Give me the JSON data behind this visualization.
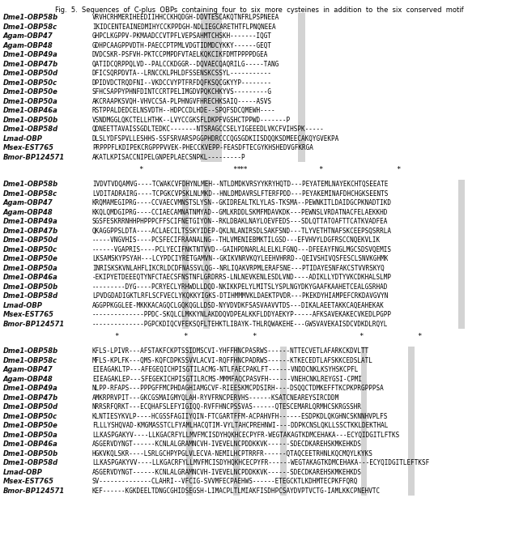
{
  "title": "Fig.  5.  Sequences  of  C-plus  OBPs  containing  four  to  six  more  cysteines  in  addition  to  the  six  conserved  motif",
  "background_color": "#ffffff",
  "text_color": "#000000",
  "label_color": "#111111",
  "shading_color": "#b0b0b0",
  "figsize": [
    6.41,
    6.78
  ],
  "dpi": 100,
  "label_fontsize": 6.0,
  "seq_fontsize": 5.5,
  "blocks": [
    {
      "labels": [
        "Dme1-OBP58b",
        "Dme1-OBP58c",
        "Agam-OBP47",
        "Agam-OBP48",
        "Dme1-OBP49a",
        "Dme1-OBP47b",
        "Dme1-OBP50d",
        "Dme1-OBP50c",
        "Dme1-OBP50e",
        "Dme1-OBP50a",
        "Dme1-OBP46a",
        "Dme1-OBP50b",
        "Dme1-OBP58d",
        "Lmad-OBP",
        "Msex-EST765",
        "Bmor-BP124571"
      ],
      "sequences": [
        "VRVHCRHMERIHEEDIIHHCCKHQDGH-DDVTESCAKQTNFRLPSPNEEA",
        "IKIDCENTEAINEDMIHYCCKPPDGH-NDLIEGCARETHTFLPNQNEEA",
        "GHPCLKGPPV-PKMAADCCVTPFLVEPSAHMTCHSKH-------IQGT",
        "GDHPCAAGPPVDTH-PAECCPTPMLVDGTIDMDCYKKY------GEQT",
        "DVDCSKR-PSFVH-PKTCCPMPDFVTAELKQKCIKFDMTPPPPDGEA",
        "QATIDCQRPPQLVD--PALCCKDGGR--DQVAECQAQRILG-----TANG",
        "DFICSQRPDVTA--LRNCCKLPHLDFSSENSKCSSYL-----------",
        "DPIDVDCTRQDFNI--VKDCCVYPTFRFDQFKSQCGKYYP--------",
        "SFHCSAPPYPHNFDINTCCRTPELIMGDVPQKCHKYVS---------G",
        "AKCRAAPKSVQH-VHVCCSA-PLPHNGVFHRECHKSAIQ-----ASVS",
        "RSTPPALDEDCELNSVDTH--HDPCCDLHDE--SPQFSDCQMEWH----",
        "VSNDMGGLQKCTELLHTHK--LVYCCGKSFLDKPFVGSHCTPPWD-------P",
        "QDNEETTAVAISSGDLTEDKC-------NTSRAGCCSELYIGEEEDLVKCFVIHSPK-----",
        "DLSLYDFSPVLLESHHS-SSFSRVARSPGGPHDRCCCQGSGDKIISDQQKSDMEECAKQYGVEKPA",
        "PRPPPFLKDIPEKCRGPPPVVEK-PHECCKVEPP-FEASDFTECGYKHSHEDVGFKRGA",
        "AKATLKPISACCNIPELGNPEPLAECSNPKL---------P"
      ],
      "star_cols": [
        7,
        22,
        23,
        35,
        47
      ],
      "double_star_cols": [
        22,
        23
      ]
    },
    {
      "labels": [
        "Dme1-OBP58b",
        "Dme1-OBP58c",
        "Agam-OBP47",
        "Agam-OBP48",
        "Dme1-OBP49a",
        "Dme1-OBP47b",
        "Dme1-OBP50d",
        "Dme1-OBP50c",
        "Dme1-OBP50e",
        "Dme1-OBP50a",
        "Dme1-OBP46a",
        "Dme1-OBP50b",
        "Dme1-OBP58d",
        "Lmad-OBP",
        "Msex-EST765",
        "Bmor-BP124571"
      ],
      "sequences": [
        "IVDVTVDQAMVG----TCWAKCVFDHYNLMEH--NTLDMDKVRSYYKRYHQTD---PEYATEMLNAYEKCHTQSEEATE",
        "LVDITADRAIRG----TCPGKCVPSKLNLMKD--HNLDMDAVRSLFTERFPDD---PEYAKEMINAFDHCHGKSEENTS",
        "KRQMAMEGIPRG----CCVAECVMNSTSLYSN--GKIDREALTKLYLAS-TKSMA--PEWNKITLDAIDGCPKNADTIKD",
        "KKQLQMDGIPRG----CCIAECAMNATNMYAD--GMLKRDDLSKMFMDAVKDK---PEWNSLVRDATNACFELAEKKHD",
        "SGSFESKRRNHHPHPPPCFFSCIFNETGIYON--RKLDBAKLNAYLOEVFEDS---SDLQTTATOAFTTCATKVADFEA",
        "QKAGGPPSLDTA----ACLAECILTSSKYIDEP-QKLNLANIRSDLSAKFSND---TLYVETHTNAFSKCEEPSQSRRLA",
        "-----VNGVHIS----PCSFECIFRAANALNG--THLVMENIEBMKTILGSD---EFVHVYLDGFRSCCNQEKVLIK",
        "------VGAPRIS----PCLYECIFNKTNTVVD--GAIHPDNARLALELKLFGNQ---DFEEAYFNGLMGCSDSVQEMIS",
        "LKSAMSKYPSYAH---LCYPDCIYRETGAMVN--GKIKVNRVKQYLEEHVHRRD--QEIVSHIVQSFESCLSNVKGHMK",
        "INRISKSKVNLAHFLIKCRLDCDFNASSVLQG--NRLIQAKVRPMLERAFSNE---PTIDAYESNFAKCSTVVRSKYQ",
        "-EKIPYETDEEEQTYNFCTAECSFNSTNFLGRDRRS-LNLNEVKENLESDLVND----ADIKLLYDTYVKCDKHALSLMP",
        "---------DYG----PCRYECLYRHWDLLDQD-NKIKKPELYLMITSLYSPLNGYDKYGAAFKAAHETCEALGSRHAD",
        "LPVDGDADIGKTLRFLSCFVECLYKQKKYIGKS-DTIHMMMVKLDAEKTPVDR---PKEKDYHIAMPEFCRKDAVGVYN",
        "AGGPPKGGLEE-MKKKACAGQCLGQKQGLLDSD-NYVDVDKFSASVAAVVTDS---DIKALAEETAKKCAQEAHEKAK",
        "--------------PPDC-SKQLCLMKKYNLAKDDQVDPEALKKFLDDYAEKYP-----AFKSAVEKAKECVKEDLPGPP",
        "--------------PGPCKDIQCVFEKSQFLTEHKTLIBAYK-THLRQWAKEHE---GWSVAVEKAISDCVDKDLRQYL"
      ],
      "star_cols": [
        4,
        17,
        30,
        50,
        61
      ],
      "double_star_cols": []
    },
    {
      "labels": [
        "Dme1-OBP58b",
        "Dme1-OBP58c",
        "Agam-OBP47",
        "Agam-OBP48",
        "Dme1-OBP49a",
        "Dme1-OBP47b",
        "Dme1-OBP50d",
        "Dme1-OBP50c",
        "Dme1-OBP50e",
        "Dme1-OBP50a",
        "Dme1-OBP46a",
        "Dme1-OBP50b",
        "Dme1-OBP58d",
        "Lmad-OBP",
        "Msex-EST765",
        "Bmor-BP124571"
      ],
      "sequences": [
        "KFLS-LPIVR---AFSTAKFCKPTSSIDMSCVI-YHFFHNCPASRWS------NTTECVETLAFARKCKDVLTT",
        "MFLS-KPLFK---QMS-KQFCDPKSSVVLACVI-RQFFHNCPADRWS------KTKECEDTLAFSKKCEDSLATL",
        "EIEAGAKLTP---AFEGEQICHPISGTILACMG-NTLFAECPAKLFT------VNDDCNKLKSYHSKCPFL",
        "EIEAGAKLEP---SFEGEKICHPISGTILRCMS-MMMFAQCPASVFH------VNEHCNKLREYGSI-CPMI",
        "NLPP-RFAPS---PPPGFFMCPHDAGHIAMGCVF-RIEESKMCPDSIRH----DSQQCTDMKEFFTKCPKPRGPPPSA",
        "AMKRPRVPIT---GKCGSMAIGMYQLAH-RYVFRNCPERVHS------KSATCNEAREYSIRCDDM",
        "NRRSRFQRKT---ECQHAFSLEFYIGIQQ-RVFFHNCPSSVAS------QTESCEMARLQRMHCSKRGSSHR",
        "KLNTIESYKVLP----HCGSSFAGIIYQIN-FTCGARTFFM-ACPAHVFH------ESDPKDLQKGHNCSKNNHVPLFS",
        "FLLLYSHQVAD-KMGMASSTCLFYAMLHACQTIM-VYLTAHCPREHNWI----DDPKCNSLQKLLSSCTKKLDEKTHAL",
        "LLKASPGAKYV----LLKGACRFYLLMVFMCISDYHQKHCECPYFR-WEGTAKAGTKDMCEHAKA---ECYQIDGITLFTKS",
        "ASGERVDYNGT------KCNLALGRAMNCVH-IVEVELNCPDDKKVK------SDECDKAREHSKMKEHKDS",
        "HGKVKQLSKR----LSRLGCHPYPGLVLECVA-NEMILHCPTRRFR------QTAQCEETRHNLKQCMQYLKYKS",
        "LLKASPGAKYVV----LLKGACRFYLLMVFMCISDYHQKHCECPYFR------WEGTAKAGTKDMCEHAKA---ECYQIDGITLEFTKSF",
        "ASGERVDYNGT------KCNLALGRAMNCVH-IVEVELNCPDDKKVK------SDECDKAREHSKMKEHKDS",
        "SV--------------CLAHRI--VFCIG-SVVMFECPAEHWS------ETEGCKTLKDHMTECPKFFQRQ",
        "KEF------KGKDEELTDNGCGHIDSEGSH-LIMACPLTLMIAKFISDHPCSAYDVPTVCTG-IAMLKKCPNEHVTC"
      ],
      "star_cols": [],
      "double_star_cols": []
    }
  ]
}
